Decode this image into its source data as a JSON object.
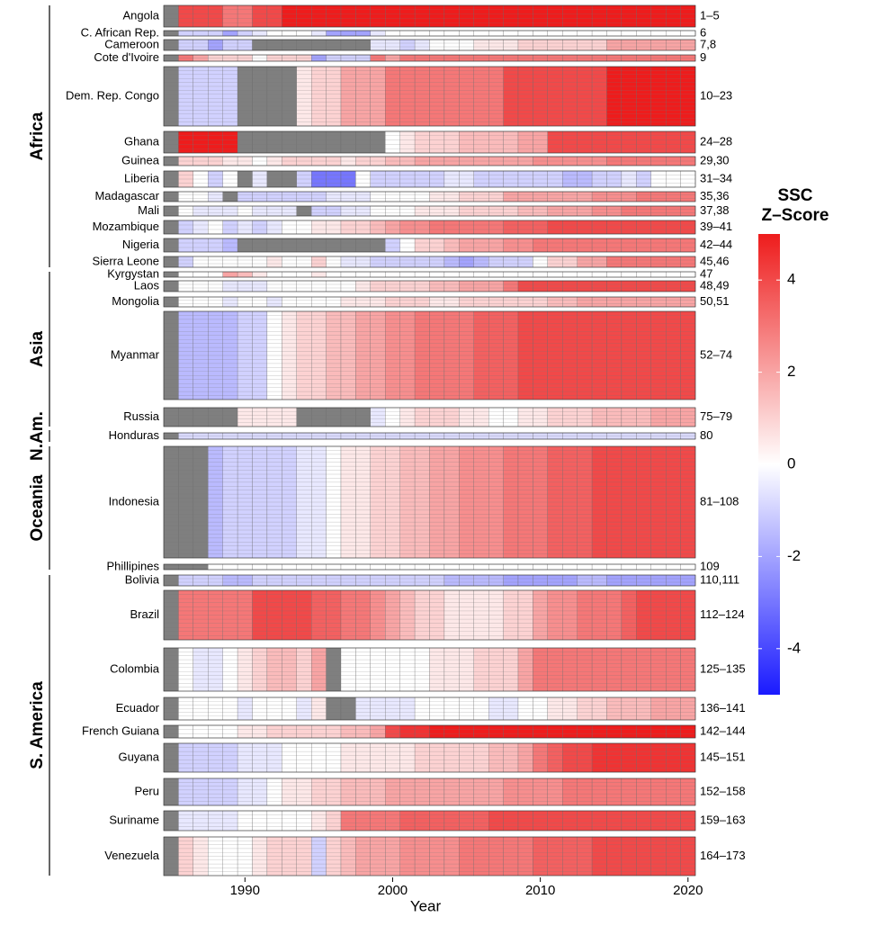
{
  "chart_data": {
    "type": "heatmap",
    "x_label": "Year",
    "colorbar_title": [
      "SSC",
      "Z–Score"
    ],
    "x": [
      1985,
      1986,
      1987,
      1988,
      1989,
      1990,
      1991,
      1992,
      1993,
      1994,
      1995,
      1996,
      1997,
      1998,
      1999,
      2000,
      2001,
      2002,
      2003,
      2004,
      2005,
      2006,
      2007,
      2008,
      2009,
      2010,
      2011,
      2012,
      2013,
      2014,
      2015,
      2016,
      2017,
      2018,
      2019,
      2020
    ],
    "xlim": [
      1984.5,
      2020.5
    ],
    "xticks": [
      1990,
      2000,
      2010,
      2020
    ],
    "clim": [
      -5,
      5
    ],
    "cticks": [
      -4,
      -2,
      0,
      2,
      4
    ],
    "colormap": {
      "low": "#1a1aff",
      "mid": "#ffffff",
      "high": "#ee1c1c",
      "na": "#7f7f7f"
    },
    "regions": [
      "Africa",
      "Asia",
      "N.Am.",
      "Oceania",
      "S. America"
    ],
    "rows": [
      {
        "name": "Angola",
        "range": "1–5",
        "values": [
          null,
          4,
          4,
          4,
          3,
          3,
          4,
          4,
          5,
          5,
          5,
          5,
          5,
          5,
          5,
          5,
          5,
          5,
          5,
          5,
          5,
          5,
          5,
          5,
          5,
          5,
          5,
          5,
          5,
          5,
          5,
          5,
          5,
          5,
          5,
          5
        ]
      },
      {
        "name": "C. African Rep.",
        "range": "6",
        "values": [
          null,
          -1,
          -1,
          -1,
          -2,
          -1,
          -0.5,
          0,
          0,
          0,
          -0.5,
          -2,
          -2,
          -2,
          -0.5,
          0,
          0,
          0,
          0,
          0,
          0,
          0,
          0,
          0,
          0,
          0,
          0,
          0,
          0,
          0,
          0,
          0,
          0,
          0,
          0,
          0
        ]
      },
      {
        "name": "Cameroon",
        "range": "7,8",
        "values": [
          null,
          -1,
          -1,
          -2,
          -1,
          -1,
          null,
          null,
          null,
          null,
          null,
          null,
          null,
          null,
          -0.5,
          -0.5,
          -1,
          -0.5,
          0,
          0,
          0,
          0.5,
          0.5,
          0.5,
          1,
          1,
          1,
          1,
          1,
          1,
          2,
          2,
          2,
          2,
          2,
          2
        ]
      },
      {
        "name": "Cote d'Ivoire",
        "range": "9",
        "values": [
          null,
          3,
          2,
          1,
          1,
          1,
          0,
          1,
          1,
          1,
          -2,
          -1,
          -1,
          -1,
          3,
          2,
          3,
          3,
          3,
          3,
          3,
          3,
          3,
          3,
          3,
          3,
          3,
          3,
          3,
          3,
          3,
          3,
          3,
          3,
          3,
          3
        ]
      },
      {
        "name": "Dem. Rep. Congo",
        "range": "10–23",
        "values": [
          null,
          -1,
          -1,
          -1,
          -1,
          null,
          null,
          null,
          null,
          0.5,
          1,
          1,
          2,
          2,
          2,
          3,
          3,
          3,
          3,
          3,
          3,
          3,
          3,
          4,
          4,
          4,
          4,
          4,
          4,
          4,
          5,
          5,
          5,
          5,
          5,
          5
        ]
      },
      {
        "name": "Ghana",
        "range": "24–28",
        "values": [
          null,
          5,
          5,
          5,
          5,
          null,
          null,
          null,
          null,
          null,
          null,
          null,
          null,
          null,
          null,
          0,
          0.5,
          1,
          1,
          1,
          1.5,
          1.5,
          1.5,
          1.5,
          2,
          2,
          4,
          4,
          4,
          4,
          4,
          4,
          4,
          4,
          4,
          4
        ]
      },
      {
        "name": "Guinea",
        "range": "29,30",
        "values": [
          null,
          1,
          1,
          1,
          0.5,
          0.5,
          0,
          0.5,
          1,
          1,
          1,
          1,
          0.5,
          1,
          1,
          1.5,
          1.5,
          2,
          2,
          2,
          2,
          2,
          2,
          2,
          2,
          2.5,
          2.5,
          2.5,
          2.5,
          2.5,
          3,
          3,
          3,
          3,
          3,
          3
        ]
      },
      {
        "name": "Liberia",
        "range": "31–34",
        "values": [
          null,
          1,
          0,
          -1,
          0,
          null,
          -0.5,
          null,
          null,
          -1,
          -3,
          -3,
          -3,
          0,
          -1,
          -1,
          -1,
          -1,
          -1,
          -0.5,
          -0.5,
          -1,
          -1,
          -1,
          -1,
          -1,
          -1,
          -1.5,
          -1.5,
          -1,
          -1,
          -0.5,
          -1,
          0,
          0,
          0
        ]
      },
      {
        "name": "Madagascar",
        "range": "35,36",
        "values": [
          null,
          0,
          0,
          -0.5,
          null,
          -1,
          -1,
          -1,
          -1,
          -1,
          -1,
          -0.5,
          -0.5,
          -0.5,
          0,
          0,
          0,
          0,
          0.5,
          0.5,
          1,
          1,
          1,
          2,
          2,
          2,
          2,
          2,
          2,
          2.5,
          2.5,
          2.5,
          3,
          3,
          3,
          3
        ]
      },
      {
        "name": "Mali",
        "range": "37,38",
        "values": [
          null,
          0,
          -0.5,
          -0.5,
          -0.5,
          0,
          -0.5,
          -0.5,
          -0.5,
          null,
          -1,
          -1,
          -0.5,
          -0.5,
          0,
          0,
          0,
          0.5,
          0.5,
          0.5,
          1,
          1,
          1,
          1,
          1.5,
          1.5,
          2,
          2,
          2,
          2.5,
          2.5,
          3,
          3,
          3,
          3,
          3
        ]
      },
      {
        "name": "Mozambique",
        "range": "39–41",
        "values": [
          null,
          -1,
          -0.5,
          0,
          -1,
          -0.5,
          -1,
          -0.5,
          0,
          0,
          0.5,
          0.5,
          1,
          1,
          1.5,
          2,
          2.5,
          2.5,
          3,
          3,
          3,
          3,
          3,
          3.5,
          3.5,
          3.5,
          4,
          4,
          4,
          4,
          4,
          4,
          4,
          4,
          4,
          4
        ]
      },
      {
        "name": "Nigeria",
        "range": "42–44",
        "values": [
          null,
          -1,
          -1,
          -1,
          -1.5,
          null,
          null,
          null,
          null,
          null,
          null,
          null,
          null,
          null,
          null,
          -1,
          0,
          1,
          1,
          1.5,
          2,
          2,
          2,
          2.5,
          2.5,
          3,
          3,
          3,
          3,
          3,
          3,
          3,
          3,
          3,
          3,
          3
        ]
      },
      {
        "name": "Sierra Leone",
        "range": "45,46",
        "values": [
          null,
          -1,
          0,
          0,
          0,
          0,
          0,
          0.5,
          0,
          0,
          1,
          0,
          -0.5,
          -0.5,
          -1,
          -1,
          -1,
          -1,
          -1,
          -1.5,
          -2,
          -1.5,
          -1,
          -1,
          -1,
          0,
          1,
          1,
          2,
          2,
          3,
          3,
          3,
          3,
          3,
          3
        ]
      },
      {
        "name": "Kyrgystan",
        "range": "47",
        "values": [
          null,
          0,
          0,
          0,
          2,
          1.5,
          0.5,
          0,
          0,
          0,
          0.5,
          0,
          0,
          0,
          0,
          0,
          0,
          0,
          0,
          0,
          0,
          0,
          0,
          0,
          0,
          0,
          0,
          0,
          0,
          0,
          0,
          0,
          0,
          0,
          0,
          0
        ]
      },
      {
        "name": "Laos",
        "range": "48,49",
        "values": [
          null,
          0,
          0,
          0,
          -0.5,
          -0.5,
          -0.5,
          0,
          0,
          0,
          0,
          0,
          0,
          0.5,
          1,
          1,
          1,
          1,
          1.5,
          1.5,
          2,
          2,
          2,
          3,
          4,
          4,
          4,
          4,
          4,
          4,
          4,
          4,
          4,
          4,
          4,
          4
        ]
      },
      {
        "name": "Mongolia",
        "range": "50,51",
        "values": [
          null,
          0,
          0,
          0,
          -0.5,
          0,
          0,
          -0.5,
          0,
          0,
          0,
          0,
          0.5,
          0.5,
          0.5,
          1,
          1,
          1,
          0.5,
          0.5,
          1,
          1,
          1,
          1,
          1,
          1,
          1.5,
          1.5,
          2,
          2,
          2,
          2,
          2,
          2,
          2,
          2
        ]
      },
      {
        "name": "Myanmar",
        "range": "52–74",
        "values": [
          null,
          -1.5,
          -1.5,
          -1.5,
          -1.5,
          -1,
          -1,
          0,
          0.5,
          1,
          1,
          1.5,
          1.5,
          2,
          2,
          2.5,
          2.5,
          3,
          3,
          3,
          3,
          3.5,
          3.5,
          3.5,
          4,
          4,
          4,
          4,
          4,
          4,
          4,
          4,
          4,
          4,
          4,
          4
        ]
      },
      {
        "name": "Russia",
        "range": "75–79",
        "values": [
          null,
          null,
          null,
          null,
          null,
          0.5,
          0.5,
          0.5,
          0.5,
          null,
          null,
          null,
          null,
          null,
          -0.5,
          0,
          0.5,
          1,
          1,
          1,
          0.5,
          0.5,
          0,
          0,
          0.5,
          0.5,
          1,
          1,
          1,
          1.5,
          1.5,
          1.5,
          1.5,
          2,
          2,
          2
        ]
      },
      {
        "name": "Honduras",
        "range": "80",
        "values": [
          null,
          -0.8,
          -0.8,
          -0.8,
          -0.8,
          -0.8,
          -0.8,
          -0.8,
          -0.8,
          -0.8,
          -0.8,
          -0.8,
          -0.8,
          -0.8,
          -0.8,
          -0.8,
          -0.8,
          -0.8,
          -0.8,
          -0.8,
          -0.8,
          -0.8,
          -0.8,
          -0.8,
          -0.8,
          -0.8,
          -0.8,
          -0.8,
          -0.8,
          -0.8,
          -0.8,
          -0.8,
          -0.8,
          -0.8,
          -0.8,
          -0.8
        ]
      },
      {
        "name": "Indonesia",
        "range": "81–108",
        "values": [
          null,
          null,
          null,
          -1.5,
          -1,
          -1,
          -1,
          -1,
          -1,
          -0.5,
          -0.5,
          0,
          0.5,
          0.5,
          1,
          1,
          1.5,
          1.5,
          2,
          2,
          2.5,
          2.5,
          2.5,
          3,
          3,
          3,
          3.5,
          3.5,
          3.5,
          4,
          4,
          4,
          4,
          4,
          4,
          4
        ]
      },
      {
        "name": "Phillipines",
        "range": "109",
        "values": [
          null,
          null,
          null,
          0,
          0,
          0,
          0,
          0,
          0,
          0,
          0,
          0,
          0,
          0,
          0,
          0,
          0,
          0,
          0,
          0,
          0,
          0,
          0,
          0,
          0,
          0,
          0,
          0,
          0,
          0,
          0,
          0,
          0,
          0,
          0,
          0
        ]
      },
      {
        "name": "Bolivia",
        "range": "110,111",
        "values": [
          null,
          -1,
          -1,
          -1,
          -1.5,
          -1.5,
          -1,
          -1,
          -1,
          -1,
          -1,
          -1,
          -1,
          -1,
          -1,
          -1,
          -1,
          -1,
          -1,
          -1.5,
          -1.5,
          -1.5,
          -1.5,
          -2,
          -2,
          -2,
          -2,
          -2,
          -1.5,
          -1.5,
          -2,
          -2,
          -2,
          -2,
          -2,
          -2
        ]
      },
      {
        "name": "Brazil",
        "range": "112–124",
        "values": [
          null,
          3,
          3,
          3,
          3,
          3,
          4,
          4,
          4,
          4,
          3.5,
          3.5,
          3,
          3,
          2.5,
          2,
          1.5,
          1,
          1,
          0.5,
          0.5,
          0.5,
          0.5,
          1,
          1,
          2,
          2.5,
          2.5,
          3,
          3,
          3,
          3.5,
          4,
          4,
          4,
          4
        ]
      },
      {
        "name": "Colombia",
        "range": "125–135",
        "values": [
          null,
          0,
          -0.5,
          -0.5,
          0,
          0.5,
          1,
          1.5,
          1.5,
          1,
          2,
          null,
          0,
          0,
          0,
          0,
          0,
          0,
          0.5,
          0.5,
          0.5,
          1,
          1,
          1,
          2,
          3,
          3,
          3,
          3,
          3,
          3,
          3,
          3,
          3,
          3,
          3
        ]
      },
      {
        "name": "Ecuador",
        "range": "136–141",
        "values": [
          null,
          0,
          0,
          0,
          0,
          -0.5,
          0,
          0,
          0,
          -0.5,
          0.5,
          null,
          null,
          -0.5,
          -0.5,
          -0.5,
          -0.5,
          0,
          0,
          0,
          0,
          0,
          -0.5,
          -0.5,
          0,
          0,
          0.5,
          0.5,
          1,
          1,
          1.5,
          1.5,
          1.5,
          2,
          2,
          2
        ]
      },
      {
        "name": "French Guiana",
        "range": "142–144",
        "values": [
          null,
          0,
          0,
          0,
          0,
          0.5,
          0.5,
          1,
          1,
          1,
          1,
          1,
          1.5,
          1.5,
          2,
          4,
          4.5,
          4.5,
          5,
          5,
          5,
          5,
          5,
          5,
          5,
          5,
          5,
          5,
          5,
          5,
          5,
          5,
          5,
          5,
          5,
          5
        ]
      },
      {
        "name": "Guyana",
        "range": "145–151",
        "values": [
          null,
          -1,
          -1,
          -1,
          -1,
          -0.5,
          -0.5,
          -0.5,
          0,
          0,
          0,
          0,
          0.5,
          0.5,
          0.5,
          0.5,
          0.5,
          1,
          1,
          1,
          1,
          1,
          1.5,
          1.5,
          2,
          3,
          3.5,
          4,
          4,
          4.5,
          4.5,
          4.5,
          4.5,
          4.5,
          4.5,
          4.5
        ]
      },
      {
        "name": "Peru",
        "range": "152–158",
        "values": [
          null,
          -1,
          -1,
          -1,
          -1,
          -0.5,
          -0.5,
          0,
          0.5,
          0.5,
          1,
          1,
          1.5,
          1.5,
          1.5,
          2,
          2,
          2,
          2,
          2,
          2,
          2,
          2,
          2.5,
          2.5,
          2.5,
          2.5,
          3,
          3,
          3,
          3,
          3,
          3,
          3,
          3,
          3
        ]
      },
      {
        "name": "Suriname",
        "range": "159–163",
        "values": [
          null,
          -0.5,
          -0.5,
          -0.5,
          -0.5,
          0,
          0,
          0,
          0,
          0,
          0.5,
          1,
          3,
          3,
          3,
          3,
          3.5,
          3.5,
          3.5,
          3.5,
          3.5,
          3.5,
          4,
          4,
          4,
          4,
          4,
          4,
          4,
          4,
          4,
          4,
          4,
          4,
          4,
          4
        ]
      },
      {
        "name": "Venezuela",
        "range": "164–173",
        "values": [
          null,
          1,
          0.5,
          0,
          0,
          0,
          0.5,
          1,
          1,
          1,
          -1,
          1,
          1.5,
          2,
          2,
          2,
          2.5,
          2.5,
          2.5,
          2.5,
          3,
          3,
          3,
          3,
          3,
          3.5,
          3.5,
          3.5,
          3.5,
          4,
          4,
          4,
          4,
          4,
          4,
          4
        ]
      }
    ]
  }
}
